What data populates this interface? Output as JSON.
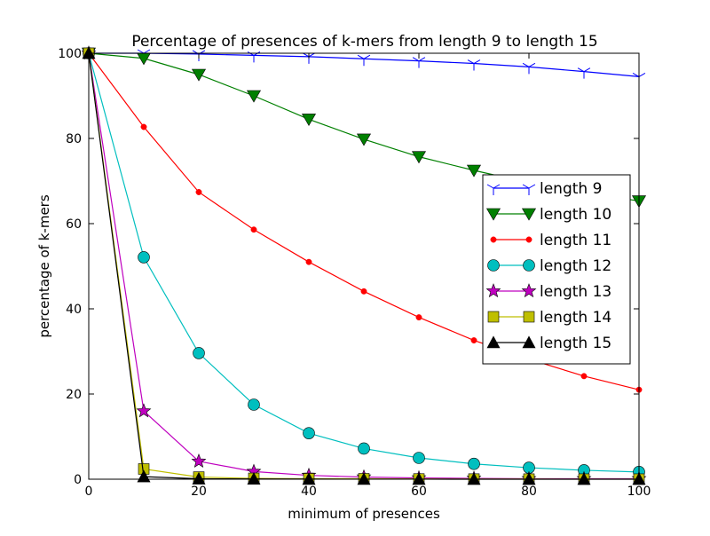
{
  "chart_data": {
    "type": "line",
    "title": "Percentage of presences of k-mers from length 9 to length 15",
    "xlabel": "minimum of presences",
    "ylabel": "percentage of k-mers",
    "xlim": [
      0,
      100
    ],
    "ylim": [
      0,
      100
    ],
    "xticks": [
      0,
      20,
      40,
      60,
      80,
      100
    ],
    "yticks": [
      0,
      20,
      40,
      60,
      80,
      100
    ],
    "grid": false,
    "legend_position": "center-right",
    "x": [
      0,
      10,
      20,
      30,
      40,
      50,
      60,
      70,
      80,
      90,
      100
    ],
    "series": [
      {
        "name": "length 9",
        "color": "#0000ff",
        "marker": "tri-down",
        "values": [
          100,
          100,
          99.8,
          99.5,
          99.2,
          98.7,
          98.2,
          97.6,
          96.8,
          95.7,
          94.5
        ]
      },
      {
        "name": "length 10",
        "color": "#008000",
        "marker": "triangle-down",
        "values": [
          100,
          98.8,
          95,
          90,
          84.5,
          79.8,
          75.7,
          72.5,
          69.6,
          67.4,
          65.3
        ]
      },
      {
        "name": "length 11",
        "color": "#ff0000",
        "marker": "circle-small",
        "values": [
          100,
          82.7,
          67.4,
          58.6,
          51,
          44.1,
          38,
          32.6,
          28.2,
          24.2,
          21
        ]
      },
      {
        "name": "length 12",
        "color": "#00bfbf",
        "marker": "circle",
        "values": [
          100,
          52.1,
          29.6,
          17.5,
          10.8,
          7.2,
          5,
          3.6,
          2.7,
          2.1,
          1.7
        ]
      },
      {
        "name": "length 13",
        "color": "#bf00bf",
        "marker": "star",
        "values": [
          100,
          16,
          4.2,
          1.8,
          0.9,
          0.5,
          0.3,
          0.2,
          0.1,
          0.1,
          0.1
        ]
      },
      {
        "name": "length 14",
        "color": "#bfbf00",
        "marker": "square",
        "values": [
          100,
          2.4,
          0.5,
          0.2,
          0.1,
          0.1,
          0.05,
          0.03,
          0.02,
          0.01,
          0.01
        ]
      },
      {
        "name": "length 15",
        "color": "#000000",
        "marker": "triangle-up",
        "values": [
          100,
          0.6,
          0.1,
          0.05,
          0.02,
          0.01,
          0.01,
          0,
          0,
          0,
          0
        ]
      }
    ]
  }
}
